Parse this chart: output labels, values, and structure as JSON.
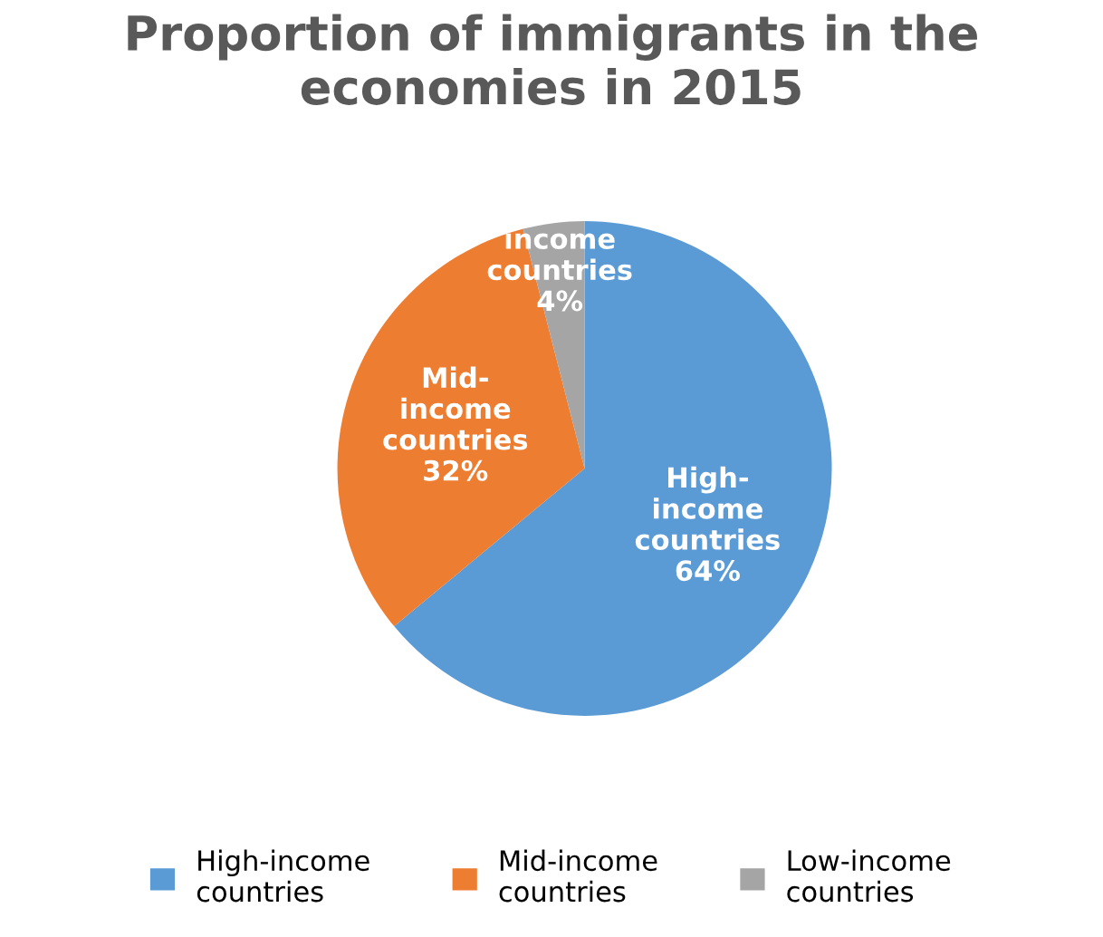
{
  "chart_data": {
    "type": "pie",
    "title": "Proportion of immigrants in the\neconomies in 2015",
    "categories": [
      "High-income\ncountries",
      "Mid-income\ncountries",
      "Low-income\ncountries"
    ],
    "values": [
      64,
      32,
      4
    ],
    "colors": [
      "#5b9bd5",
      "#ed7d31",
      "#a5a5a5"
    ],
    "value_labels": [
      "High-\nincome\ncountries\n64%",
      "Mid-\nincome\ncountries\n32%",
      "income\ncountries\n4%"
    ],
    "legend": "bottom"
  }
}
